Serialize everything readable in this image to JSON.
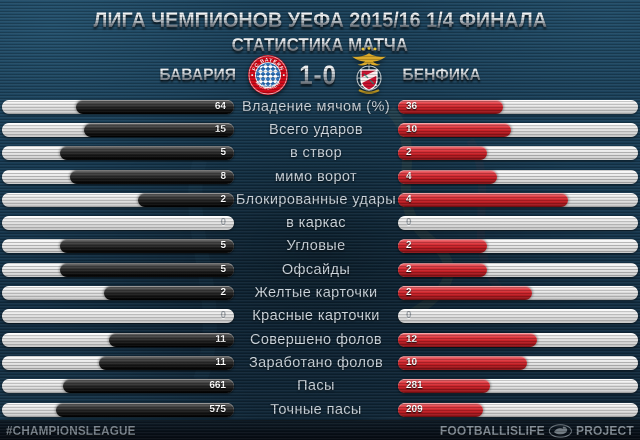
{
  "header": {
    "title": "ЛИГА ЧЕМПИОНОВ УЕФА 2015/16 1/4 ФИНАЛА",
    "subtitle": "СТАТИСТИКА МАТЧА",
    "teams": {
      "home": {
        "name": "БАВАРИЯ",
        "badge": "bayern-munich-crest"
      },
      "away": {
        "name": "БЕНФИКА",
        "badge": "benfica-crest"
      },
      "score": "1-0"
    }
  },
  "chart_data": {
    "type": "bar",
    "orientation": "horizontal-paired",
    "title": "СТАТИСТИКА МАТЧА",
    "categories": [
      "Владение мячом (%)",
      "Всего ударов",
      "в створ",
      "мимо ворот",
      "Блокированные удары",
      "в каркас",
      "Угловые",
      "Офсайды",
      "Желтые карточки",
      "Красные карточки",
      "Совершено фолов",
      "Заработано фолов",
      "Пасы",
      "Точные пасы"
    ],
    "series": [
      {
        "name": "Бавария",
        "side": "left",
        "color": "#1a1a1a",
        "values": [
          64,
          15,
          5,
          8,
          2,
          0,
          5,
          5,
          2,
          0,
          11,
          11,
          661,
          575
        ]
      },
      {
        "name": "Бенфика",
        "side": "right",
        "color": "#cf2127",
        "values": [
          36,
          10,
          2,
          4,
          4,
          0,
          2,
          2,
          2,
          0,
          12,
          10,
          281,
          209
        ]
      }
    ],
    "value_scaling": "bar length proportional to share of row total",
    "legend_position": "none",
    "grid": false
  },
  "footer": {
    "hashtag": "#CHAMPIONSLEAGUE",
    "brand_left": "FOOTBALLISLIFE",
    "brand_right": "PROJECT",
    "brand_icon": "bird-logo"
  },
  "colors": {
    "background": "#173a52",
    "home_bar": "#1a1a1a",
    "away_bar": "#cf2127",
    "bar_track": "#dcdcdc",
    "label_text": "#ccd5dd",
    "metal_text": "#c6ccd2",
    "footer_text": "#79838c",
    "bayern_red": "#d00717",
    "benfica_red": "#c8102e",
    "eagle_gold": "#d9a726"
  }
}
